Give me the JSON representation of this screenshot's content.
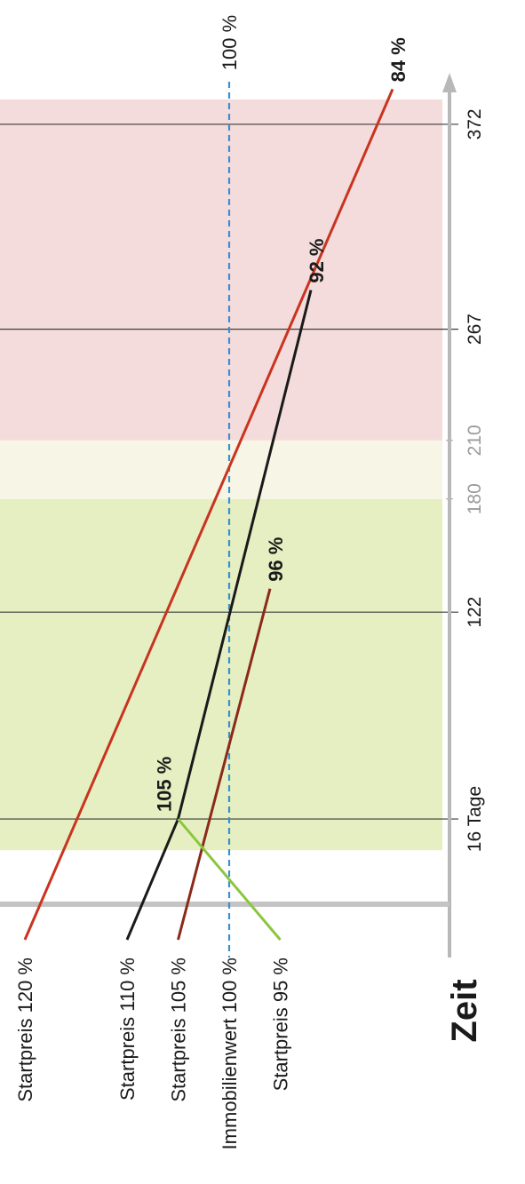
{
  "chart_data": {
    "type": "line",
    "xlabel": "Zeit",
    "x_ticks": [
      {
        "value": 16,
        "label": "16 Tage",
        "style": "major"
      },
      {
        "value": 122,
        "label": "122",
        "style": "major"
      },
      {
        "value": 180,
        "label": "180",
        "style": "minor"
      },
      {
        "value": 210,
        "label": "210",
        "style": "minor"
      },
      {
        "value": 267,
        "label": "267",
        "style": "major"
      },
      {
        "value": 372,
        "label": "372",
        "style": "major"
      }
    ],
    "zones": [
      {
        "from": 0,
        "to": 180,
        "color": "#e6efc2"
      },
      {
        "from": 180,
        "to": 210,
        "color": "#f6f5e6"
      },
      {
        "from": 210,
        "to": 390,
        "color": "#f5dcdc"
      }
    ],
    "reference_line": {
      "value": 100,
      "label": "100 %",
      "color": "#3a8fd0"
    },
    "series": [
      {
        "name": "Startpreis 120 %",
        "color": "#c8341f",
        "points": [
          [
            0,
            120
          ],
          [
            390,
            84
          ]
        ],
        "end_label": "84 %"
      },
      {
        "name": "Startpreis 110 %",
        "color": "#1a1a1a",
        "points": [
          [
            0,
            110
          ],
          [
            16,
            105
          ],
          [
            287,
            92
          ]
        ],
        "point_labels": {
          "1": "105 %"
        },
        "end_label": "92 %"
      },
      {
        "name": "Startpreis 105 %",
        "color": "#8b2a1a",
        "points": [
          [
            0,
            105
          ],
          [
            134,
            96
          ]
        ],
        "end_label": "96 %"
      },
      {
        "name": "Startpreis 95 %",
        "color": "#8cc63f",
        "points": [
          [
            0,
            95
          ],
          [
            16,
            105
          ]
        ]
      }
    ],
    "reference_series_label": "Immobilienwert 100 %"
  }
}
